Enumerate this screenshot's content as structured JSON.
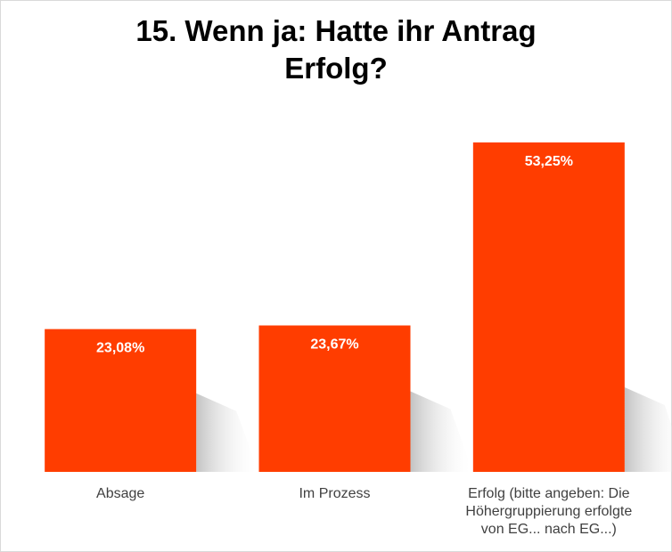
{
  "chart_data": {
    "type": "bar",
    "title_lines": [
      "15. Wenn ja: Hatte ihr Antrag",
      "Erfolg?"
    ],
    "categories": [
      [
        "Absage"
      ],
      [
        "Im Prozess"
      ],
      [
        "Erfolg (bitte angeben: Die",
        "Höhergruppierung erfolgte",
        "von EG... nach EG...)"
      ]
    ],
    "values": [
      23.08,
      23.67,
      53.25
    ],
    "value_labels": [
      "23,08%",
      "23,67%",
      "53,25%"
    ],
    "ylim": [
      0,
      60
    ],
    "grid": false,
    "legend": "none",
    "bar_color": "#ff3d00",
    "label_color": "#ffffff",
    "axis_label_color": "#404040"
  }
}
